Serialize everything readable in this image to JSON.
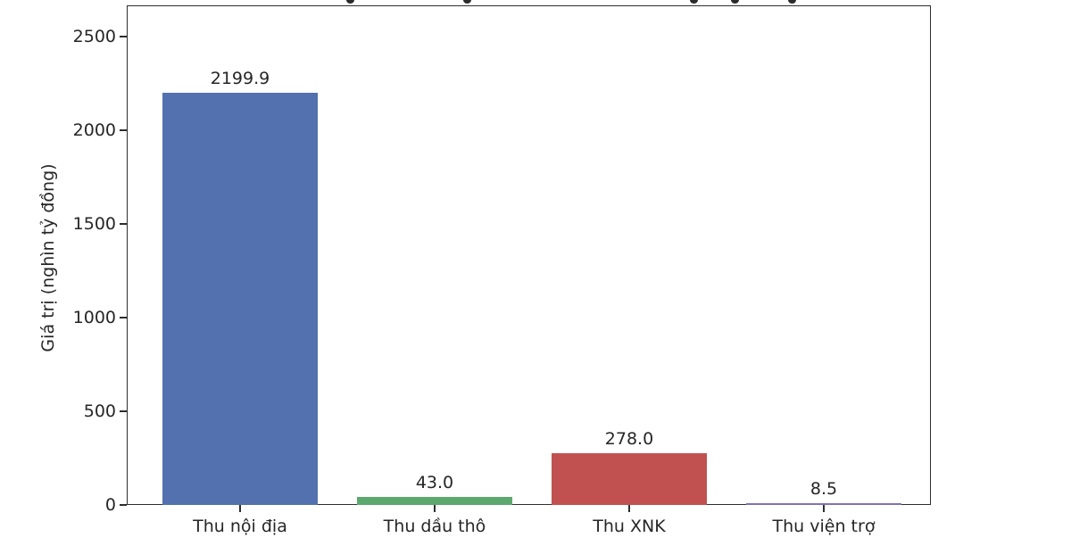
{
  "figure": {
    "background": "#ffffff",
    "axis_color": "#2e2e2e",
    "text_color": "#262626"
  },
  "chart_data": {
    "type": "bar",
    "title": "",
    "title_clipped": true,
    "title_descender_fragments_x": [
      392,
      523,
      777,
      823,
      887
    ],
    "categories": [
      "Thu nội địa",
      "Thu dầu thô",
      "Thu XNK",
      "Thu viện trợ"
    ],
    "values": [
      2199.9,
      43.0,
      278.0,
      8.5
    ],
    "value_labels": [
      "2199.9",
      "43.0",
      "278.0",
      "8.5"
    ],
    "series": [
      {
        "name": "Giá trị",
        "values": [
          2199.9,
          43.0,
          278.0,
          8.5
        ]
      }
    ],
    "bar_colors": [
      "#5271ae",
      "#5da86e",
      "#c05150",
      "#8172b2"
    ],
    "xlabel": "",
    "ylabel": "Giá trị (nghìn tỷ đồng)",
    "yticks": [
      0,
      500,
      1000,
      1500,
      2000,
      2500
    ],
    "ytick_labels": [
      "0",
      "500",
      "1000",
      "1500",
      "2000",
      "2500"
    ],
    "ylim": [
      0,
      2667
    ],
    "grid": false,
    "legend_position": "none"
  }
}
